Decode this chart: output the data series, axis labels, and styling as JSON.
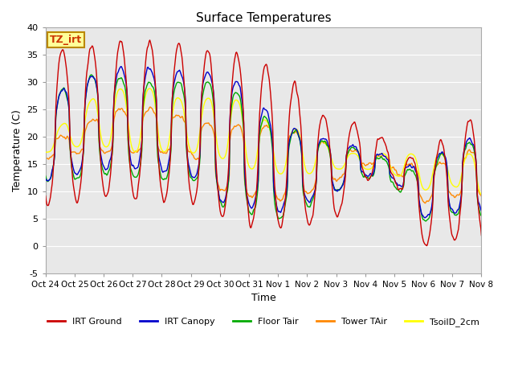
{
  "title": "Surface Temperatures",
  "xlabel": "Time",
  "ylabel": "Temperature (C)",
  "ylim": [
    -5,
    40
  ],
  "yticks": [
    -5,
    0,
    5,
    10,
    15,
    20,
    25,
    30,
    35,
    40
  ],
  "xtick_labels": [
    "Oct 24",
    "Oct 25",
    "Oct 26",
    "Oct 27",
    "Oct 28",
    "Oct 29",
    "Oct 30",
    "Oct 31",
    "Nov 1",
    "Nov 2",
    "Nov 3",
    "Nov 4",
    "Nov 5",
    "Nov 6",
    "Nov 7",
    "Nov 8"
  ],
  "annotation_text": "TZ_irt",
  "annotation_bg": "#ffff99",
  "annotation_border": "#bb8800",
  "line_colors": {
    "IRT Ground": "#cc0000",
    "IRT Canopy": "#0000cc",
    "Floor Tair": "#00aa00",
    "Tower TAir": "#ff8800",
    "TsoilD_2cm": "#ffff00"
  },
  "plot_bg": "#e8e8e8",
  "grid_color": "#ffffff"
}
